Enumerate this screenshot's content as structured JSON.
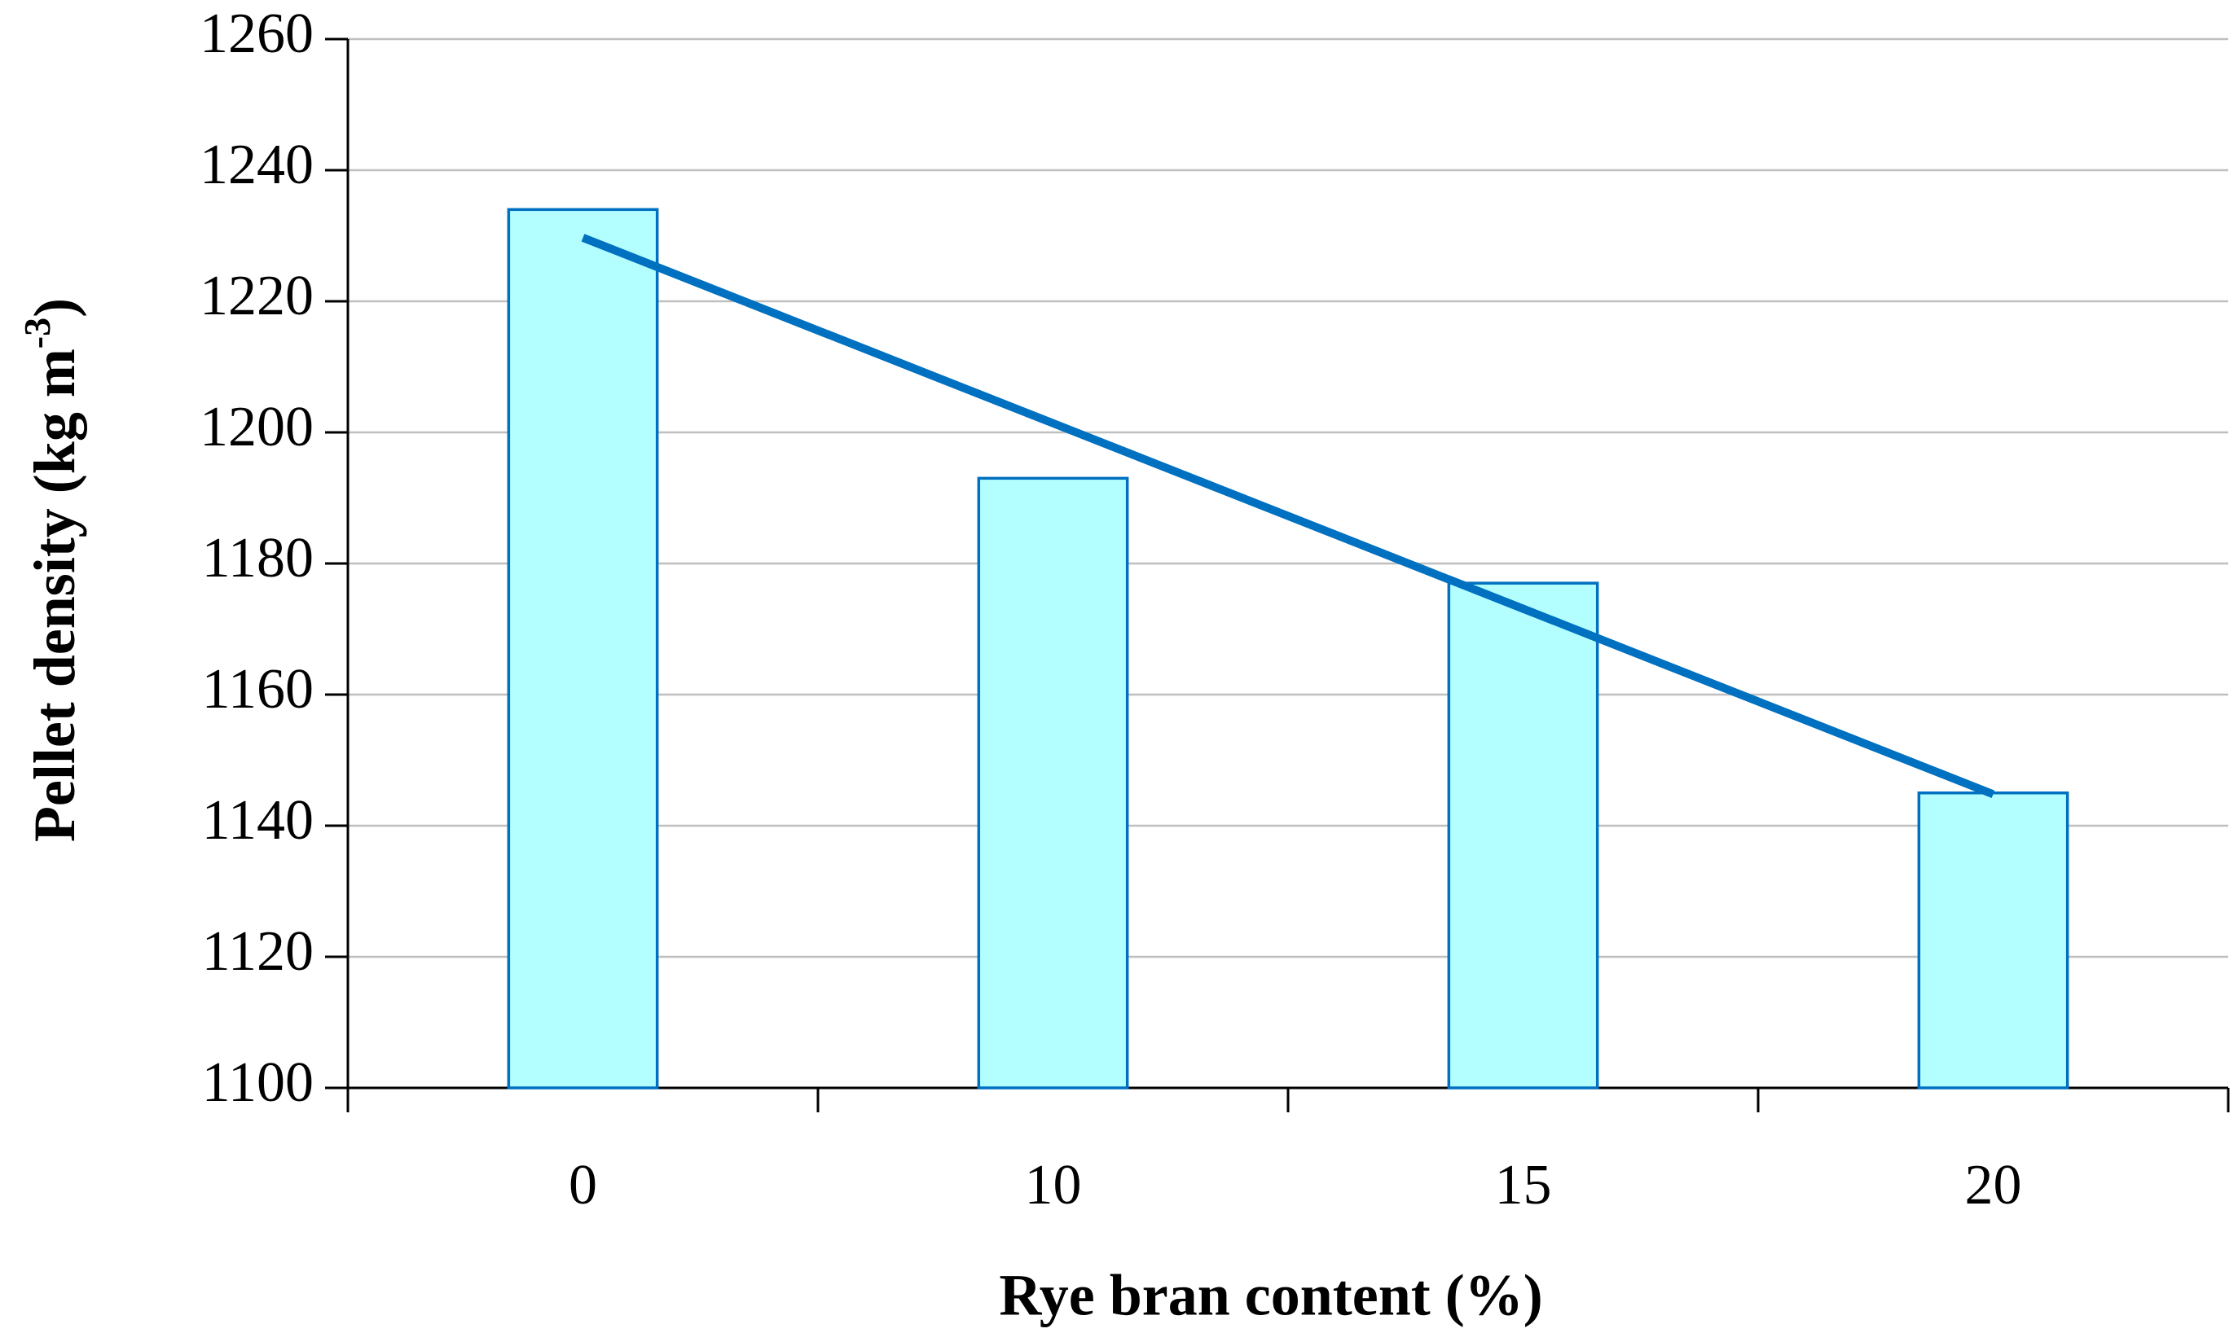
{
  "chart_data": {
    "type": "bar",
    "x_label": "Rye bran content (%)",
    "y_label": {
      "text": "Pellet density (kg m",
      "sup": "-3",
      "end": ")"
    },
    "categories": [
      "0",
      "10",
      "15",
      "20"
    ],
    "values": [
      1234,
      1193,
      1177,
      1145
    ],
    "color": "#b3ffff",
    "edge_color": "#0070c0",
    "trendline": {
      "values": [
        1229.7,
        1201.4,
        1173.1,
        1144.8
      ],
      "color": "#0070c0"
    },
    "ylim": [
      1100,
      1260
    ],
    "yticks": [
      1100,
      1120,
      1140,
      1160,
      1180,
      1200,
      1220,
      1240,
      1260
    ],
    "grid": true
  }
}
